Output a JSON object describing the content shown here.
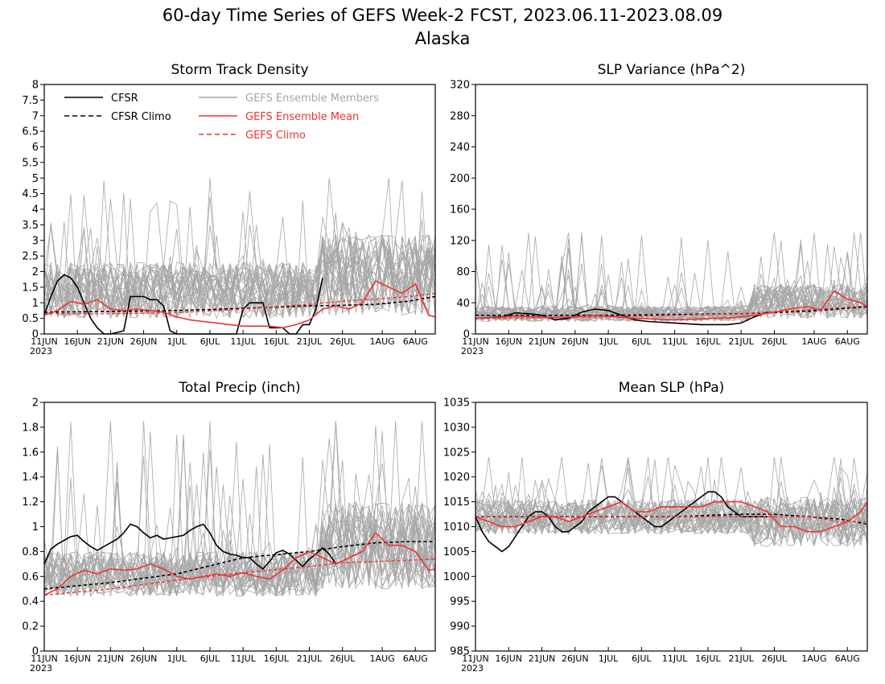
{
  "title": "60-day Time Series of GEFS Week-2 FCST, 2023.06.11-2023.08.09",
  "subtitle": "Alaska",
  "colors": {
    "cfsr": "#000000",
    "members": "#a6a6a6",
    "ensemble_mean": "#f03232",
    "gefs_climo": "#f03232"
  },
  "legend": [
    {
      "label": "CFSR",
      "color": "#000000",
      "dash": "solid"
    },
    {
      "label": "CFSR Climo",
      "color": "#000000",
      "dash": "dashed"
    },
    {
      "label": "GEFS Ensemble Members",
      "color": "#a6a6a6",
      "dash": "solid"
    },
    {
      "label": "GEFS Ensemble Mean",
      "color": "#f03232",
      "dash": "solid"
    },
    {
      "label": "GEFS Climo",
      "color": "#f03232",
      "dash": "dashed"
    }
  ],
  "x_ticks": [
    {
      "label": "11JUN",
      "day": 0
    },
    {
      "label": "16JUN",
      "day": 5
    },
    {
      "label": "21JUN",
      "day": 10
    },
    {
      "label": "26JUN",
      "day": 15
    },
    {
      "label": "1JUL",
      "day": 20
    },
    {
      "label": "6JUL",
      "day": 25
    },
    {
      "label": "11JUL",
      "day": 30
    },
    {
      "label": "16JUL",
      "day": 35
    },
    {
      "label": "21JUL",
      "day": 40
    },
    {
      "label": "26JUL",
      "day": 45
    },
    {
      "label": "1AUG",
      "day": 51
    },
    {
      "label": "6AUG",
      "day": 56
    }
  ],
  "x_year": "2023",
  "chart_data": [
    {
      "type": "line",
      "title": "Storm Track Density",
      "ylim": [
        0,
        8
      ],
      "yticks": [
        "0",
        "0.5",
        "1",
        "1.5",
        "2",
        "2.5",
        "3",
        "3.5",
        "4",
        "4.5",
        "5",
        "5.5",
        "6",
        "6.5",
        "7",
        "7.5",
        "8"
      ],
      "members": {
        "count": 30,
        "mean_level": 1.4,
        "spread": 0.9,
        "late_mean_level": 1.9,
        "late_spread": 1.3,
        "peak": 5.0
      },
      "series": [
        {
          "name": "CFSR",
          "day": [
            0,
            1,
            2,
            3,
            4,
            5,
            6,
            7,
            8,
            9,
            10,
            11,
            12,
            13,
            14,
            15,
            16,
            17,
            18,
            19,
            20,
            21,
            22,
            23,
            24,
            25,
            26,
            27,
            28,
            29,
            30,
            31,
            32,
            33,
            34,
            35,
            36,
            37,
            38,
            39,
            40,
            41,
            42
          ],
          "values": [
            0.6,
            1.2,
            1.7,
            1.9,
            1.8,
            1.5,
            1.0,
            0.5,
            0.2,
            0.0,
            0.0,
            0.05,
            0.1,
            1.2,
            1.2,
            1.2,
            1.1,
            1.1,
            0.9,
            0.1,
            0.0,
            0.0,
            0.0,
            0.0,
            0.0,
            0.0,
            0.0,
            0.0,
            0.0,
            0.0,
            0.8,
            1.0,
            1.0,
            1.0,
            0.2,
            0.2,
            0.2,
            0.0,
            0.0,
            0.3,
            0.3,
            0.8,
            1.8
          ]
        },
        {
          "name": "CFSR Climo",
          "day": [
            0,
            10,
            20,
            30,
            40,
            45,
            50,
            55,
            59
          ],
          "values": [
            0.7,
            0.72,
            0.75,
            0.82,
            0.9,
            0.92,
            0.95,
            1.05,
            1.2
          ]
        },
        {
          "name": "GEFS Ensemble Mean",
          "day": [
            0,
            2,
            4,
            6,
            8,
            10,
            12,
            14,
            16,
            18,
            20,
            22,
            24,
            26,
            28,
            30,
            32,
            34,
            36,
            38,
            40,
            42,
            44,
            46,
            48,
            50,
            52,
            54,
            56,
            58,
            59
          ],
          "values": [
            0.6,
            0.75,
            1.05,
            0.95,
            1.1,
            0.8,
            0.75,
            0.8,
            0.75,
            0.7,
            0.55,
            0.45,
            0.4,
            0.35,
            0.3,
            0.25,
            0.25,
            0.25,
            0.2,
            0.3,
            0.45,
            0.8,
            0.9,
            0.8,
            1.0,
            1.7,
            1.5,
            1.3,
            1.6,
            0.6,
            0.55
          ]
        },
        {
          "name": "GEFS Climo",
          "day": [
            0,
            10,
            20,
            30,
            40,
            45,
            50,
            55,
            59
          ],
          "values": [
            0.65,
            0.65,
            0.68,
            0.8,
            0.95,
            1.05,
            1.12,
            1.2,
            1.3
          ]
        }
      ]
    },
    {
      "type": "line",
      "title": "SLP Variance (hPa^2)",
      "ylim": [
        0,
        320
      ],
      "yticks": [
        "0",
        "40",
        "80",
        "120",
        "160",
        "200",
        "240",
        "280",
        "320"
      ],
      "members": {
        "count": 30,
        "mean_level": 26,
        "spread": 10,
        "late_mean_level": 42,
        "late_spread": 22,
        "peak": 130
      },
      "series": [
        {
          "name": "CFSR",
          "day": [
            0,
            2,
            4,
            6,
            8,
            10,
            12,
            14,
            16,
            18,
            20,
            22,
            24,
            26,
            28,
            30,
            32,
            34,
            36,
            38,
            40,
            42,
            44
          ],
          "values": [
            20,
            21,
            22,
            27,
            26,
            24,
            18,
            20,
            28,
            32,
            30,
            24,
            18,
            16,
            15,
            14,
            13,
            12,
            12,
            12,
            14,
            22,
            28
          ]
        },
        {
          "name": "CFSR Climo",
          "day": [
            0,
            20,
            40,
            50,
            59
          ],
          "values": [
            24,
            24,
            26,
            29,
            35
          ]
        },
        {
          "name": "GEFS Ensemble Mean",
          "day": [
            0,
            3,
            6,
            9,
            12,
            15,
            18,
            21,
            24,
            27,
            30,
            33,
            36,
            39,
            42,
            45,
            48,
            50,
            52,
            54,
            56,
            58,
            59
          ],
          "values": [
            20,
            21,
            23,
            22,
            21,
            22,
            24,
            22,
            20,
            19,
            18,
            19,
            20,
            21,
            24,
            28,
            33,
            35,
            30,
            55,
            45,
            40,
            35
          ]
        },
        {
          "name": "GEFS Climo",
          "day": [
            0,
            20,
            40,
            50,
            59
          ],
          "values": [
            20,
            22,
            26,
            31,
            36
          ]
        }
      ]
    },
    {
      "type": "line",
      "title": "Total Precip (inch)",
      "ylim": [
        0,
        2
      ],
      "yticks": [
        "0",
        "0.2",
        "0.4",
        "0.6",
        "0.8",
        "1",
        "1.2",
        "1.4",
        "1.6",
        "1.8",
        "2"
      ],
      "members": {
        "count": 30,
        "mean_level": 0.62,
        "spread": 0.18,
        "late_mean_level": 0.85,
        "late_spread": 0.35,
        "peak": 1.85
      },
      "series": [
        {
          "name": "CFSR",
          "day": [
            0,
            1,
            2,
            3,
            4,
            5,
            6,
            7,
            8,
            9,
            10,
            11,
            12,
            13,
            14,
            15,
            16,
            17,
            18,
            19,
            20,
            21,
            22,
            23,
            24,
            25,
            26,
            27,
            28,
            29,
            30,
            31,
            32,
            33,
            34,
            35,
            36,
            37,
            38,
            39,
            40,
            41,
            42,
            43,
            44
          ],
          "values": [
            0.7,
            0.82,
            0.86,
            0.89,
            0.92,
            0.93,
            0.88,
            0.84,
            0.81,
            0.84,
            0.87,
            0.9,
            0.95,
            1.02,
            1.0,
            0.95,
            0.91,
            0.93,
            0.9,
            0.91,
            0.92,
            0.93,
            0.97,
            1.0,
            1.02,
            0.95,
            0.85,
            0.8,
            0.78,
            0.77,
            0.75,
            0.75,
            0.7,
            0.66,
            0.72,
            0.79,
            0.81,
            0.78,
            0.73,
            0.68,
            0.74,
            0.78,
            0.83,
            0.78,
            0.7
          ]
        },
        {
          "name": "CFSR Climo",
          "day": [
            0,
            10,
            20,
            30,
            40,
            45,
            50,
            55,
            59
          ],
          "values": [
            0.5,
            0.55,
            0.62,
            0.75,
            0.8,
            0.84,
            0.87,
            0.88,
            0.88
          ]
        },
        {
          "name": "GEFS Ensemble Mean",
          "day": [
            0,
            2,
            4,
            6,
            8,
            10,
            12,
            14,
            16,
            18,
            20,
            22,
            24,
            26,
            28,
            30,
            32,
            34,
            36,
            38,
            40,
            42,
            44,
            46,
            48,
            50,
            52,
            54,
            56,
            58,
            59
          ],
          "values": [
            0.45,
            0.5,
            0.6,
            0.65,
            0.62,
            0.66,
            0.65,
            0.66,
            0.7,
            0.66,
            0.6,
            0.58,
            0.6,
            0.62,
            0.6,
            0.63,
            0.6,
            0.58,
            0.65,
            0.75,
            0.8,
            0.75,
            0.7,
            0.75,
            0.8,
            0.95,
            0.85,
            0.85,
            0.8,
            0.65,
            0.66
          ]
        },
        {
          "name": "GEFS Climo",
          "day": [
            0,
            10,
            20,
            30,
            40,
            45,
            50,
            55,
            59
          ],
          "values": [
            0.45,
            0.5,
            0.57,
            0.63,
            0.68,
            0.71,
            0.72,
            0.73,
            0.74
          ]
        }
      ]
    },
    {
      "type": "line",
      "title": "Mean SLP (hPa)",
      "ylim": [
        985,
        1035
      ],
      "yticks": [
        "985",
        "990",
        "995",
        "1000",
        "1005",
        "1010",
        "1015",
        "1020",
        "1025",
        "1030",
        "1035"
      ],
      "members": {
        "count": 30,
        "mean_level": 1012,
        "spread": 3.5,
        "late_mean_level": 1011,
        "late_spread": 5,
        "peak": 1024
      },
      "series": [
        {
          "name": "CFSR",
          "day": [
            0,
            1,
            2,
            3,
            4,
            5,
            6,
            7,
            8,
            9,
            10,
            11,
            12,
            13,
            14,
            15,
            16,
            17,
            18,
            19,
            20,
            21,
            22,
            23,
            24,
            25,
            26,
            27,
            28,
            29,
            30,
            31,
            32,
            33,
            34,
            35,
            36,
            37,
            38,
            39,
            40,
            41,
            42,
            43,
            44
          ],
          "values": [
            1012,
            1009,
            1007,
            1006,
            1005,
            1006,
            1008,
            1010,
            1012,
            1013,
            1013,
            1012,
            1010,
            1009,
            1009,
            1010,
            1011,
            1013,
            1014,
            1015,
            1016,
            1016,
            1015,
            1014,
            1013,
            1012,
            1011,
            1010,
            1010,
            1011,
            1012,
            1013,
            1014,
            1015,
            1016,
            1017,
            1017,
            1016,
            1014,
            1013,
            1012,
            1012,
            1012,
            1012,
            1012
          ]
        },
        {
          "name": "CFSR Climo",
          "day": [
            0,
            10,
            20,
            30,
            40,
            45,
            50,
            55,
            59
          ],
          "values": [
            1012,
            1012,
            1012,
            1012,
            1012.5,
            1012.5,
            1012,
            1011.5,
            1010.5
          ]
        },
        {
          "name": "GEFS Ensemble Mean",
          "day": [
            0,
            2,
            4,
            6,
            8,
            10,
            12,
            14,
            16,
            18,
            20,
            22,
            24,
            26,
            28,
            30,
            32,
            34,
            36,
            38,
            40,
            42,
            44,
            46,
            48,
            50,
            52,
            54,
            56,
            58,
            59
          ],
          "values": [
            1012,
            1011,
            1010,
            1010,
            1011,
            1012,
            1012,
            1011,
            1012,
            1013,
            1014,
            1015,
            1013,
            1013,
            1014,
            1014,
            1014,
            1014,
            1015,
            1015,
            1015,
            1014,
            1013,
            1010,
            1010,
            1009,
            1009,
            1010,
            1011,
            1013,
            1015
          ]
        },
        {
          "name": "GEFS Climo",
          "day": [
            0,
            10,
            20,
            30,
            40,
            45,
            50,
            55,
            59
          ],
          "values": [
            1012,
            1012,
            1012,
            1012,
            1012,
            1012,
            1012,
            1011,
            1011
          ]
        }
      ]
    }
  ]
}
